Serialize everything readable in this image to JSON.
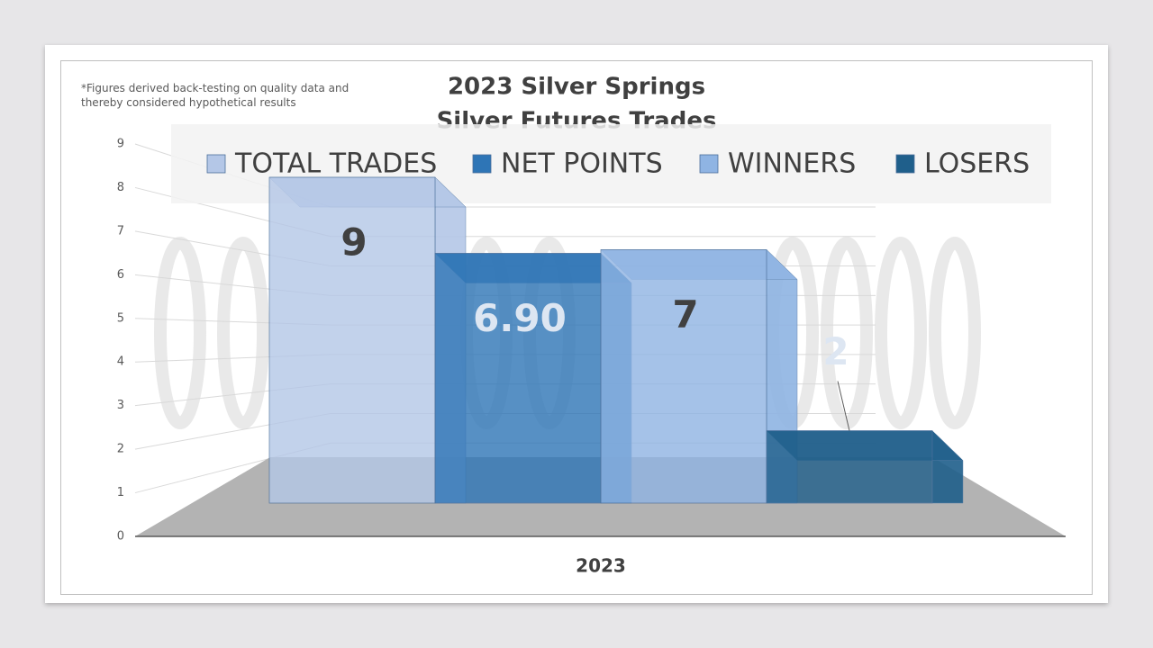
{
  "chart_data": {
    "type": "bar3d",
    "title": "2023 Silver Springs",
    "subtitle": "Silver Futures Trades",
    "annotation": "*Figures derived back-testing on quality data and thereby considered hypothetical results",
    "categories": [
      "2023"
    ],
    "series": [
      {
        "name": "TOTAL TRADES",
        "color": "#b4c7e7",
        "values": [
          9
        ]
      },
      {
        "name": "NET POINTS",
        "color": "#2e75b6",
        "values": [
          6.9
        ],
        "value_labels": [
          "6.90"
        ]
      },
      {
        "name": "WINNERS",
        "color": "#8fb4e3",
        "values": [
          7
        ]
      },
      {
        "name": "LOSERS",
        "color": "#1f5f8b",
        "values": [
          2
        ]
      }
    ],
    "ylim": [
      0,
      9
    ],
    "yticks": [
      0,
      1,
      2,
      3,
      4,
      5,
      6,
      7,
      8,
      9
    ],
    "grid": true,
    "legend": "top"
  }
}
